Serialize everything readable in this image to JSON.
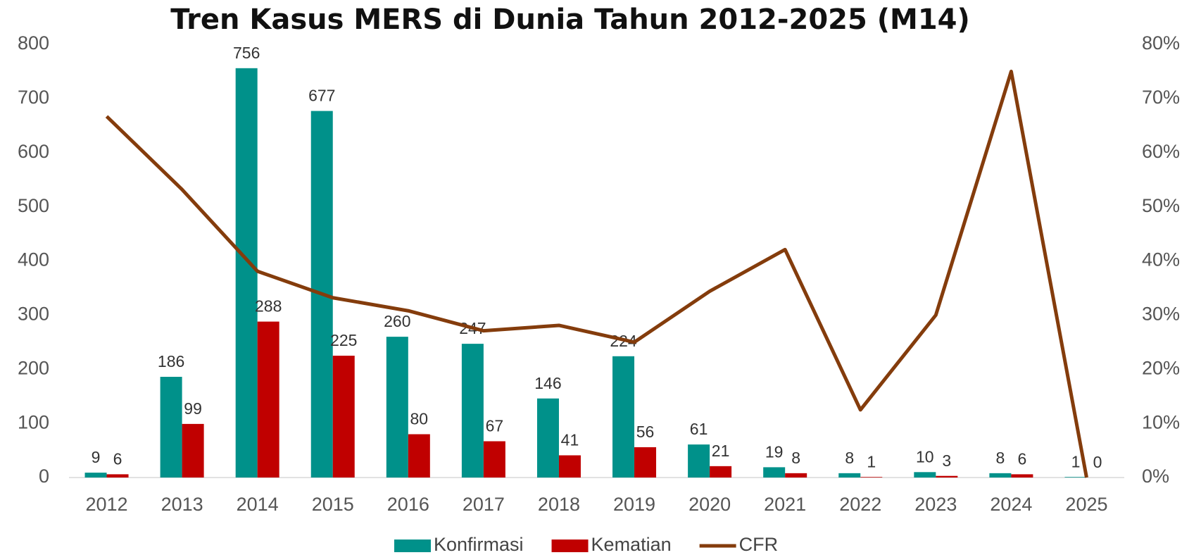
{
  "chart_data": {
    "type": "bar_line",
    "title": "Tren Kasus MERS di Dunia Tahun 2012-2025 (M14)",
    "categories": [
      "2012",
      "2013",
      "2014",
      "2015",
      "2016",
      "2017",
      "2018",
      "2019",
      "2020",
      "2021",
      "2022",
      "2023",
      "2024",
      "2025"
    ],
    "series": [
      {
        "name": "Konfirmasi",
        "type": "bar",
        "color": "#00918a",
        "values": [
          9,
          186,
          756,
          677,
          260,
          247,
          146,
          224,
          61,
          19,
          8,
          10,
          8,
          1
        ]
      },
      {
        "name": "Kematian",
        "type": "bar",
        "color": "#c00000",
        "values": [
          6,
          99,
          288,
          225,
          80,
          67,
          41,
          56,
          21,
          8,
          1,
          3,
          6,
          0
        ]
      },
      {
        "name": "CFR",
        "type": "line",
        "axis": "y2",
        "color": "#843c0c",
        "values": [
          66.7,
          53.2,
          38.1,
          33.2,
          30.8,
          27.1,
          28.1,
          25.0,
          34.4,
          42.1,
          12.5,
          30.0,
          75.0,
          0
        ]
      }
    ],
    "ylim": [
      0,
      800
    ],
    "yticks": [
      0,
      100,
      200,
      300,
      400,
      500,
      600,
      700,
      800
    ],
    "y2lim": [
      0,
      80
    ],
    "y2ticks": [
      {
        "value": 0,
        "label": "0%"
      },
      {
        "value": 10,
        "label": "10%"
      },
      {
        "value": 20,
        "label": "20%"
      },
      {
        "value": 30,
        "label": "30%"
      },
      {
        "value": 40,
        "label": "40%"
      },
      {
        "value": 50,
        "label": "50%"
      },
      {
        "value": 60,
        "label": "60%"
      },
      {
        "value": 70,
        "label": "70%"
      },
      {
        "value": 80,
        "label": "80%"
      }
    ],
    "legend": "bottom"
  }
}
